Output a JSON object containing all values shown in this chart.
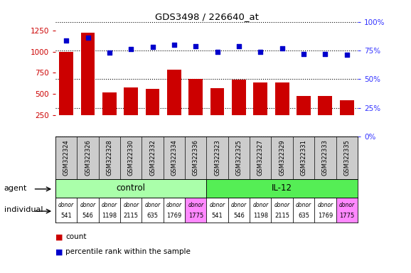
{
  "title": "GDS3498 / 226640_at",
  "samples": [
    "GSM322324",
    "GSM322326",
    "GSM322328",
    "GSM322330",
    "GSM322332",
    "GSM322334",
    "GSM322336",
    "GSM322323",
    "GSM322325",
    "GSM322327",
    "GSM322329",
    "GSM322331",
    "GSM322333",
    "GSM322335"
  ],
  "counts": [
    1000,
    1220,
    520,
    580,
    560,
    790,
    680,
    570,
    670,
    640,
    640,
    480,
    480,
    430
  ],
  "percentiles": [
    84,
    86,
    73,
    76,
    78,
    80,
    79,
    74,
    79,
    74,
    77,
    72,
    72,
    71
  ],
  "left_yticks": [
    250,
    500,
    750,
    1000,
    1250
  ],
  "right_yticks": [
    0,
    25,
    50,
    75,
    100
  ],
  "ylim_left": [
    0,
    1350
  ],
  "ylim_right": [
    0,
    100
  ],
  "bar_color": "#cc0000",
  "dot_color": "#0000cc",
  "bar_bottom": 250,
  "agent_groups": [
    {
      "label": "control",
      "start": 0,
      "end": 7,
      "color": "#aaffaa"
    },
    {
      "label": "IL-12",
      "start": 7,
      "end": 14,
      "color": "#55ee55"
    }
  ],
  "individuals": [
    "donor\n541",
    "donor\n546",
    "donor\n1198",
    "donor\n2115",
    "donor\n635",
    "donor\n1769",
    "donor\n1775",
    "donor\n541",
    "donor\n546",
    "donor\n1198",
    "donor\n2115",
    "donor\n635",
    "donor\n1769",
    "donor\n1775"
  ],
  "ind_colors": [
    "#ffffff",
    "#ffffff",
    "#ffffff",
    "#ffffff",
    "#ffffff",
    "#ffffff",
    "#ff88ff",
    "#ffffff",
    "#ffffff",
    "#ffffff",
    "#ffffff",
    "#ffffff",
    "#ffffff",
    "#ff88ff"
  ],
  "bg_color": "#ffffff",
  "label_area_color": "#cccccc",
  "tick_color_left": "#cc0000",
  "tick_color_right": "#3333ff"
}
